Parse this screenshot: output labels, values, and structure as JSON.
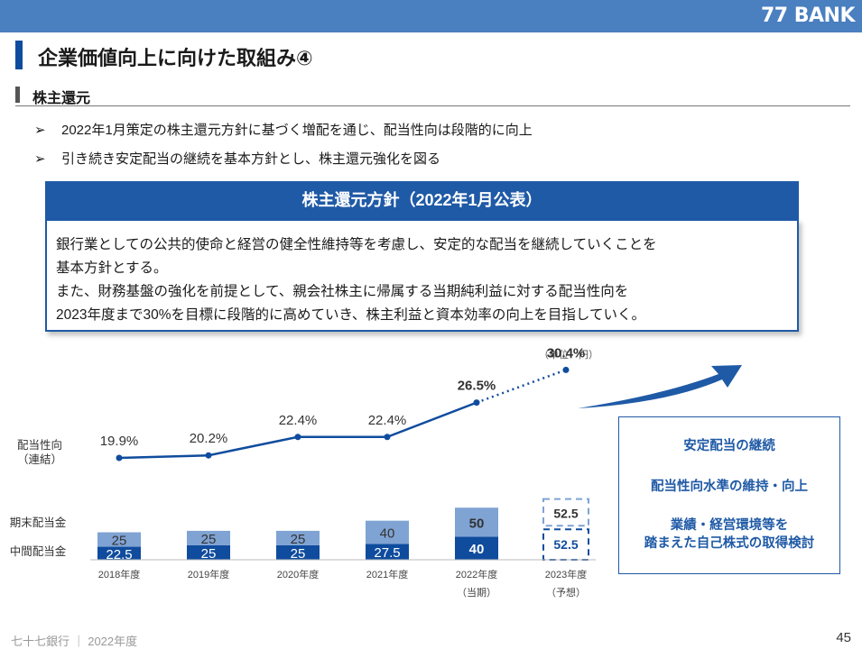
{
  "header": {
    "bank_name": "77 BANK"
  },
  "page_title": "企業価値向上に向けた取組み④",
  "section_title": "株主還元",
  "bullets": [
    {
      "marker": "➢",
      "text": "2022年1月策定の株主還元方針に基づく増配を通じ、配当性向は段階的に向上"
    },
    {
      "marker": "➢",
      "text": "引き続き安定配当の継続を基本方針とし、株主還元強化を図る"
    }
  ],
  "policy": {
    "heading": "株主還元方針（2022年1月公表）",
    "lines": [
      "銀行業としての公共的使命と経営の健全性維持等を考慮し、安定的な配当を継続していくことを",
      "基本方針とする。",
      "また、財務基盤の強化を前提として、親会社株主に帰属する当期純利益に対する配当性向を",
      "2023年度まで30%を目標に段階的に高めていき、株主利益と資本効率の向上を目指していく。"
    ]
  },
  "chart_data": {
    "type": "bar",
    "unit": "（単位：円）",
    "categories": [
      "2018年度",
      "2019年度",
      "2020年度",
      "2021年度",
      "2022年度",
      "2023年度"
    ],
    "category_notes": [
      "",
      "",
      "",
      "",
      "（当期）",
      "（予想）"
    ],
    "series": [
      {
        "name": "中間配当金",
        "values": [
          22.5,
          25,
          25,
          27.5,
          40,
          52.5
        ],
        "labels": [
          "22.5",
          "25",
          "25",
          "27.5",
          "40",
          "52.5"
        ]
      },
      {
        "name": "期末配当金",
        "values": [
          25,
          25,
          25,
          40,
          50,
          52.5
        ],
        "labels": [
          "25",
          "25",
          "25",
          "40",
          "50",
          "52.5"
        ]
      }
    ],
    "payout_ratio": {
      "name": "配当性向\n（連結）",
      "label_lines": [
        "配当性向",
        "（連結）"
      ],
      "values": [
        19.9,
        20.2,
        22.4,
        22.4,
        26.5,
        30.4
      ],
      "labels": [
        "19.9%",
        "20.2%",
        "22.4%",
        "22.4%",
        "26.5%",
        "30.4%"
      ]
    },
    "forecast_index": 5,
    "colors": {
      "interim": "#0f4c9e",
      "year_end": "#7fa3d3",
      "line": "#0f4c9e"
    }
  },
  "strategy_items": [
    {
      "lines": [
        "安定配当の継続"
      ]
    },
    {
      "lines": [
        "配当性向水準の維持・向上"
      ]
    },
    {
      "lines": [
        "業績・経営環境等を",
        "踏まえた自己株式の取得検討"
      ]
    }
  ],
  "footer": {
    "text": "七十七銀行 ｜ 2022年度",
    "page_number": "45"
  }
}
